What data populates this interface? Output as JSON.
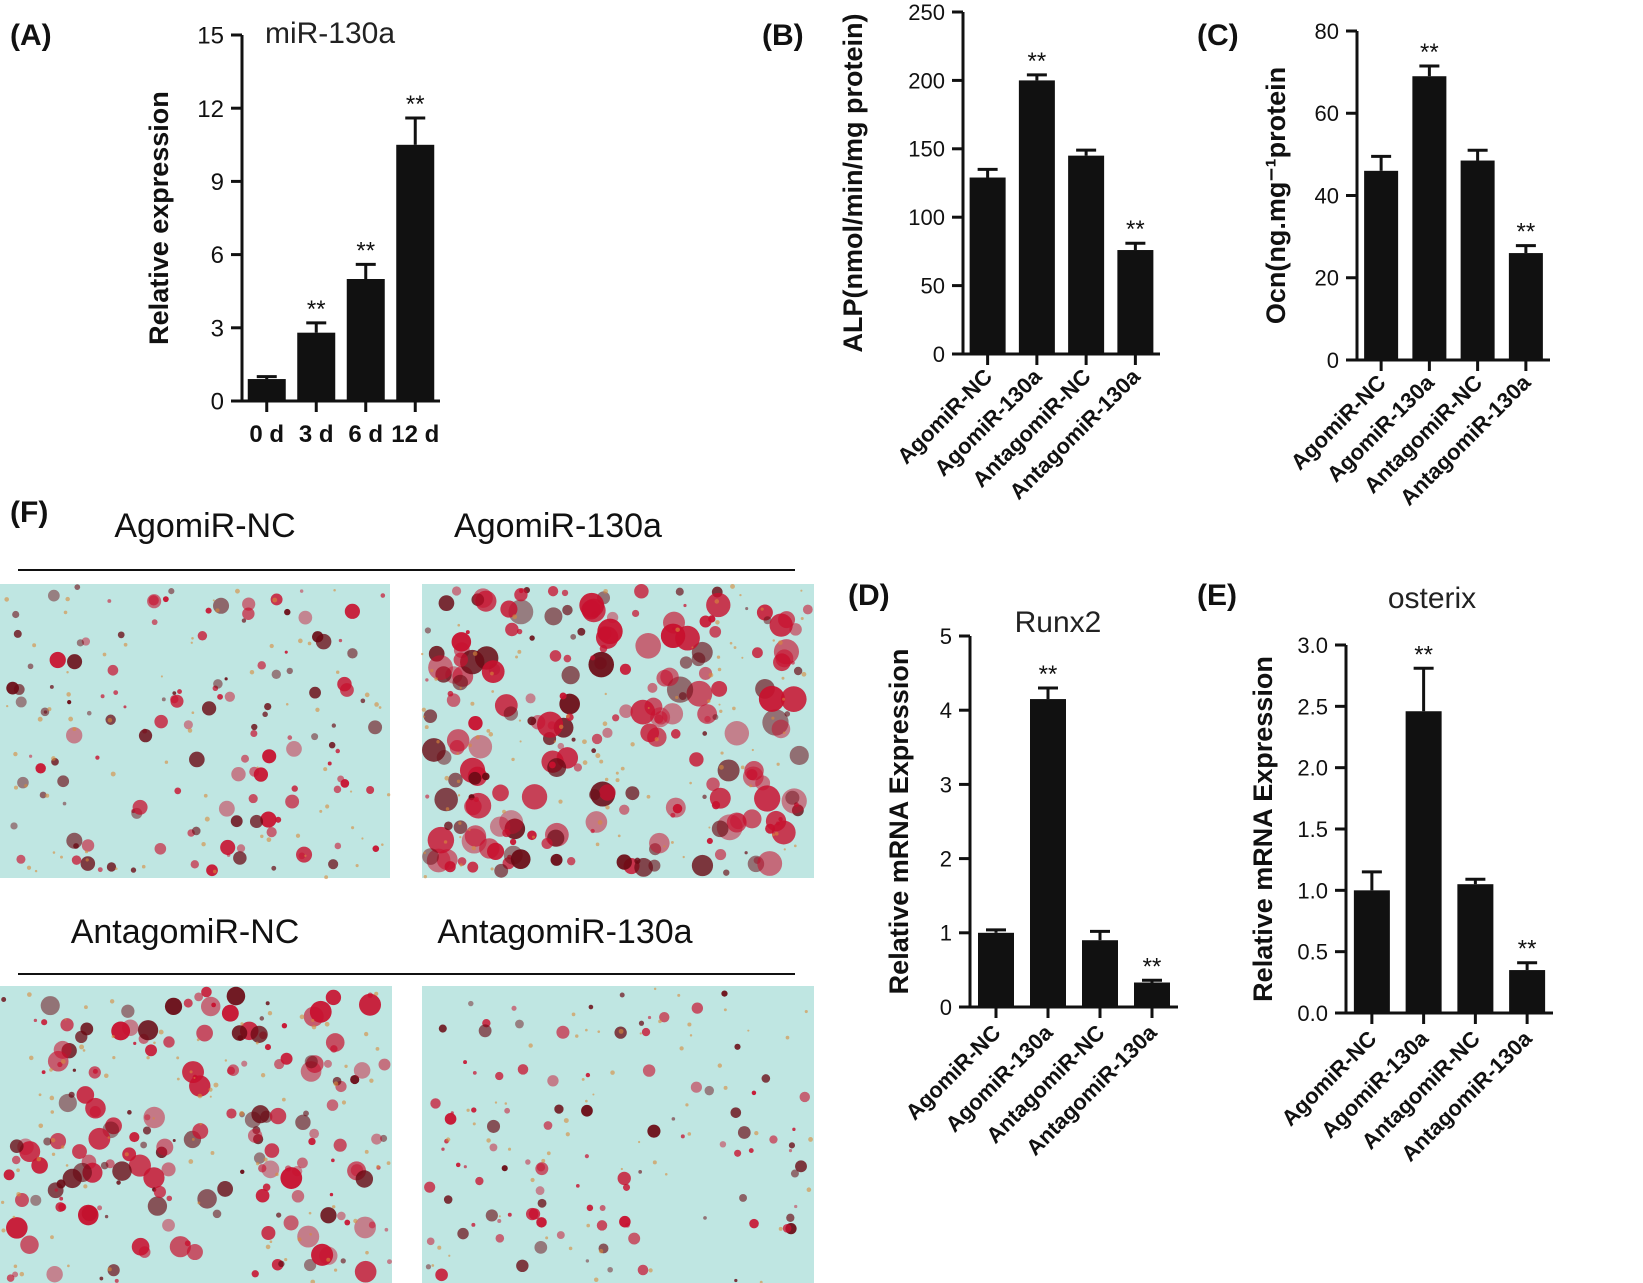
{
  "colors": {
    "bar": "#111111",
    "axis": "#111111",
    "background": "#ffffff",
    "stain_red": "#c8102e",
    "stain_dark": "#6a0a14",
    "stain_bg": "#bfe6e2"
  },
  "chart_data": [
    {
      "panel": "(A)",
      "type": "bar",
      "title": "miR-130a",
      "ylabel": "Relative expression",
      "xlabel": "",
      "categories": [
        "0 d",
        "3 d",
        "6 d",
        "12 d"
      ],
      "values": [
        0.9,
        2.8,
        5.0,
        10.5
      ],
      "errors": [
        0.1,
        0.4,
        0.6,
        1.1
      ],
      "significance": [
        "",
        "**",
        "**",
        "**"
      ],
      "ylim": [
        0,
        15
      ],
      "yticks": [
        "0",
        "3",
        "6",
        "9",
        "12",
        "15"
      ],
      "grid": false
    },
    {
      "panel": "(B)",
      "type": "bar",
      "title": "",
      "ylabel": "ALP(nmol/min/mg protein)",
      "xlabel": "",
      "categories": [
        "AgomiR-NC",
        "AgomiR-130a",
        "AntagomiR-NC",
        "AntagomiR-130a"
      ],
      "values": [
        129,
        200,
        145,
        76
      ],
      "errors": [
        6,
        4,
        4,
        5
      ],
      "significance": [
        "",
        "**",
        "",
        "**"
      ],
      "ylim": [
        0,
        250
      ],
      "yticks": [
        "0",
        "50",
        "100",
        "150",
        "200",
        "250"
      ],
      "grid": false
    },
    {
      "panel": "(C)",
      "type": "bar",
      "title": "",
      "ylabel": "Ocn(ng.mg⁻¹protein",
      "xlabel": "",
      "categories": [
        "AgomiR-NC",
        "AgomiR-130a",
        "AntagomiR-NC",
        "AntagomiR-130a"
      ],
      "values": [
        46,
        69,
        48.5,
        26
      ],
      "errors": [
        3.5,
        2.5,
        2.5,
        1.8
      ],
      "significance": [
        "",
        "**",
        "",
        "**"
      ],
      "ylim": [
        0,
        80
      ],
      "yticks": [
        "0",
        "20",
        "40",
        "60",
        "80"
      ],
      "grid": false
    },
    {
      "panel": "(D)",
      "type": "bar",
      "title": "Runx2",
      "ylabel": "Relative mRNA Expression",
      "xlabel": "",
      "categories": [
        "AgomiR-NC",
        "AgomiR-130a",
        "AntagomiR-NC",
        "AntagomiR-130a"
      ],
      "values": [
        1.0,
        4.15,
        0.9,
        0.33
      ],
      "errors": [
        0.04,
        0.15,
        0.12,
        0.03
      ],
      "significance": [
        "",
        "**",
        "",
        "**"
      ],
      "ylim": [
        0,
        5
      ],
      "yticks": [
        "0",
        "1",
        "2",
        "3",
        "4",
        "5"
      ],
      "grid": false
    },
    {
      "panel": "(E)",
      "type": "bar",
      "title": "osterix",
      "ylabel": "Relative mRNA Expression",
      "xlabel": "",
      "categories": [
        "AgomiR-NC",
        "AgomiR-130a",
        "AntagomiR-NC",
        "AntagomiR-130a"
      ],
      "values": [
        1.0,
        2.46,
        1.05,
        0.35
      ],
      "errors": [
        0.15,
        0.35,
        0.04,
        0.06
      ],
      "significance": [
        "",
        "**",
        "",
        "**"
      ],
      "ylim": [
        0,
        3
      ],
      "yticks": [
        "0.0",
        "0.5",
        "1.0",
        "1.5",
        "2.0",
        "2.5",
        "3.0"
      ],
      "grid": false
    }
  ],
  "panel_f": {
    "panel": "(F)",
    "labels": [
      "AgomiR-NC",
      "AgomiR-130a",
      "AntagomiR-NC",
      "AntagomiR-130a"
    ],
    "stain_intensity": [
      0.35,
      0.8,
      0.6,
      0.2
    ]
  }
}
